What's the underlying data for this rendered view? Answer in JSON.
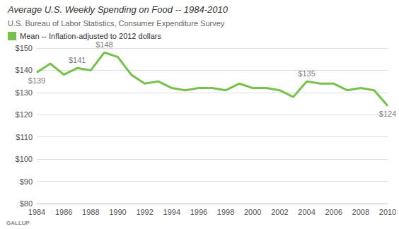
{
  "chart_data": {
    "type": "line",
    "title": "Average U.S. Weekly Spending on Food -- 1984-2010",
    "subtitle": "U.S. Bureau of Labor Statistics, Consumer Expenditure Survey",
    "footer": "GALLUP",
    "x": [
      1984,
      1985,
      1986,
      1987,
      1988,
      1989,
      1990,
      1991,
      1992,
      1993,
      1994,
      1995,
      1996,
      1997,
      1998,
      1999,
      2000,
      2001,
      2002,
      2003,
      2004,
      2005,
      2006,
      2007,
      2008,
      2009,
      2010
    ],
    "series": [
      {
        "name": "Mean -- Inflation-adjusted to 2012 dollars",
        "color": "#78c04c",
        "values": [
          139,
          143,
          138,
          141,
          140,
          148,
          146,
          138,
          134,
          135,
          132,
          131,
          132,
          132,
          131,
          134,
          132,
          132,
          131,
          128,
          135,
          134,
          134,
          131,
          132,
          131,
          124
        ]
      }
    ],
    "annotations": [
      {
        "x": 1984,
        "y": 139,
        "text": "$139"
      },
      {
        "x": 1987,
        "y": 141,
        "text": "$141"
      },
      {
        "x": 1989,
        "y": 148,
        "text": "$148"
      },
      {
        "x": 2004,
        "y": 135,
        "text": "$135"
      },
      {
        "x": 2010,
        "y": 124,
        "text": "$124"
      }
    ],
    "xlim": [
      1984,
      2010
    ],
    "xticks": [
      1984,
      1986,
      1988,
      1990,
      1992,
      1994,
      1996,
      1998,
      2000,
      2002,
      2004,
      2006,
      2008,
      2010
    ],
    "ylim": [
      80,
      150
    ],
    "yticks": [
      {
        "value": 80,
        "label": "$80"
      },
      {
        "value": 90,
        "label": "$90"
      },
      {
        "value": 100,
        "label": "$100"
      },
      {
        "value": 110,
        "label": "$110"
      },
      {
        "value": 120,
        "label": "$120"
      },
      {
        "value": 130,
        "label": "$130"
      },
      {
        "value": 140,
        "label": "$140"
      },
      {
        "value": 150,
        "label": "$150"
      }
    ],
    "grid": true,
    "legend": "top-left"
  }
}
